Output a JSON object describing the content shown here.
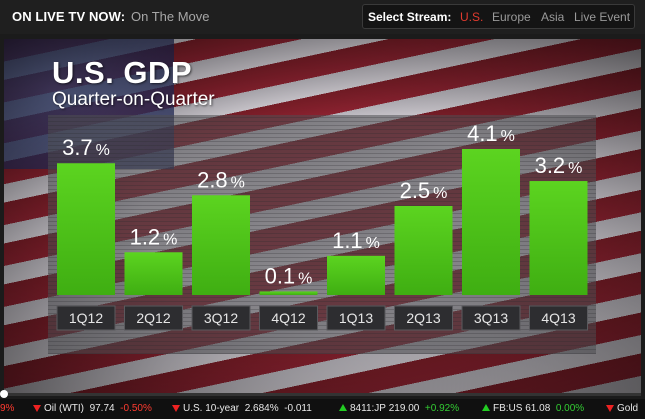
{
  "topbar": {
    "live_label": "ON LIVE TV NOW:",
    "show_name": "On The Move",
    "stream_label": "Select Stream:",
    "streams": [
      "U.S.",
      "Europe",
      "Asia",
      "Live Event"
    ],
    "active_stream": "U.S."
  },
  "video": {
    "title": "U.S. GDP",
    "subtitle": "Quarter-on-Quarter"
  },
  "chart_data": {
    "type": "bar",
    "title": "U.S. GDP",
    "subtitle": "Quarter-on-Quarter",
    "categories": [
      "1Q12",
      "2Q12",
      "3Q12",
      "4Q12",
      "1Q13",
      "2Q13",
      "3Q13",
      "4Q13"
    ],
    "values": [
      3.7,
      1.2,
      2.8,
      0.1,
      1.1,
      2.5,
      4.1,
      3.2
    ],
    "value_labels": [
      "3.7",
      "1.2",
      "2.8",
      "0.1",
      "1.1",
      "2.5",
      "4.1",
      "3.2"
    ],
    "unit_suffix": "%",
    "ylim": [
      0,
      4.1
    ],
    "bar_color": "#4fc21a",
    "xlabel": "",
    "ylabel": ""
  },
  "ticker": {
    "items": [
      {
        "name": "",
        "value": "",
        "change": "9%",
        "dir": "down"
      },
      {
        "name": "Oil (WTI)",
        "value": "97.74",
        "change": "-0.50%",
        "dir": "down"
      },
      {
        "name": "U.S. 10-year",
        "value": "2.684%",
        "change": "-0.011",
        "dir": "down"
      },
      {
        "name": "8411:JP",
        "value": "219.00",
        "change": "+0.92%",
        "dir": "up"
      },
      {
        "name": "FB:US",
        "value": "61.08",
        "change": "0.00%",
        "dir": "up"
      },
      {
        "name": "Gold",
        "value": "",
        "change": "",
        "dir": "down"
      }
    ]
  },
  "colors": {
    "accent_red": "#e03a2e",
    "up_green": "#33cc33",
    "down_red": "#ff3b30"
  }
}
